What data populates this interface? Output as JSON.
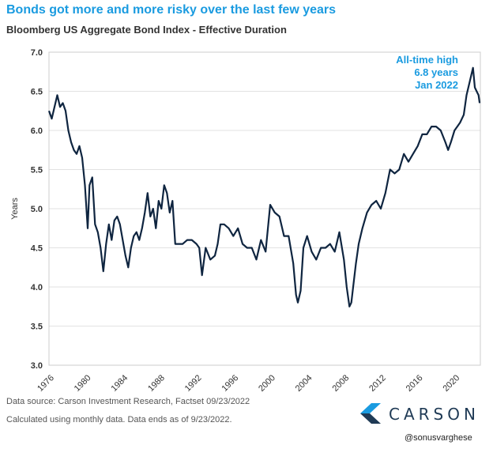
{
  "title": "Bonds got more and more risky over the last few years",
  "subtitle": "Bloomberg US Aggregate Bond Index - Effective Duration",
  "footer": {
    "source": "Data source: Carson Investment Research, Factset  09/23/2022",
    "note": "Calculated using monthly data. Data ends as of 9/23/2022.",
    "handle": "@sonusvarghese"
  },
  "logo": {
    "text": "CARSON",
    "icon": "carson-chevron-icon"
  },
  "colors": {
    "title": "#1a9be0",
    "line": "#0f2540",
    "annotation": "#1a9be0",
    "grid": "#e2e2e2"
  },
  "chart_data": {
    "type": "line",
    "ylabel": "Years",
    "ylim": [
      3.0,
      7.0
    ],
    "yticks": [
      "3.0",
      "3.5",
      "4.0",
      "4.5",
      "5.0",
      "5.5",
      "6.0",
      "6.5",
      "7.0"
    ],
    "xlim": [
      1976,
      2022.8
    ],
    "xticks": [
      "1976",
      "1980",
      "1984",
      "1988",
      "1992",
      "1996",
      "2000",
      "2004",
      "2008",
      "2012",
      "2016",
      "2020"
    ],
    "grid": "horizontal",
    "annotation": {
      "lines": [
        "All-time high",
        "6.8 years",
        "Jan 2022"
      ]
    },
    "series": [
      {
        "x": [
          1976.0,
          1976.3,
          1976.6,
          1976.9,
          1977.2,
          1977.5,
          1977.8,
          1978.1,
          1978.4,
          1978.7,
          1979.0,
          1979.3,
          1979.6,
          1979.9,
          1980.2,
          1980.4,
          1980.7,
          1981.0,
          1981.3,
          1981.6,
          1981.9,
          1982.2,
          1982.5,
          1982.8,
          1983.1,
          1983.4,
          1983.7,
          1984.0,
          1984.3,
          1984.6,
          1984.9,
          1985.2,
          1985.5,
          1985.8,
          1986.1,
          1986.4,
          1986.7,
          1987.0,
          1987.3,
          1987.6,
          1987.9,
          1988.2,
          1988.5,
          1988.8,
          1989.1,
          1989.4,
          1989.7,
          1990.0,
          1990.5,
          1991.0,
          1991.5,
          1992.0,
          1992.3,
          1992.6,
          1993.0,
          1993.5,
          1994.0,
          1994.3,
          1994.6,
          1995.0,
          1995.5,
          1996.0,
          1996.5,
          1997.0,
          1997.5,
          1998.0,
          1998.5,
          1999.0,
          1999.5,
          2000.0,
          2000.5,
          2001.0,
          2001.5,
          2002.0,
          2002.5,
          2002.8,
          2003.0,
          2003.3,
          2003.6,
          2004.0,
          2004.5,
          2005.0,
          2005.5,
          2006.0,
          2006.5,
          2007.0,
          2007.5,
          2008.0,
          2008.3,
          2008.6,
          2008.8,
          2009.0,
          2009.3,
          2009.6,
          2010.0,
          2010.5,
          2011.0,
          2011.5,
          2012.0,
          2012.5,
          2013.0,
          2013.5,
          2014.0,
          2014.5,
          2015.0,
          2015.5,
          2016.0,
          2016.5,
          2017.0,
          2017.5,
          2018.0,
          2018.5,
          2019.0,
          2019.3,
          2019.6,
          2020.0,
          2020.3,
          2020.6,
          2021.0,
          2021.3,
          2021.6,
          2021.9,
          2022.0,
          2022.2,
          2022.4,
          2022.6,
          2022.72
        ],
        "y": [
          6.25,
          6.15,
          6.3,
          6.45,
          6.3,
          6.35,
          6.25,
          6.0,
          5.85,
          5.75,
          5.7,
          5.8,
          5.65,
          5.3,
          4.75,
          5.3,
          5.4,
          4.8,
          4.7,
          4.5,
          4.2,
          4.55,
          4.8,
          4.6,
          4.85,
          4.9,
          4.8,
          4.6,
          4.4,
          4.25,
          4.5,
          4.65,
          4.7,
          4.6,
          4.75,
          4.95,
          5.2,
          4.9,
          5.0,
          4.75,
          5.1,
          5.0,
          5.3,
          5.2,
          4.95,
          5.1,
          4.55,
          4.55,
          4.55,
          4.6,
          4.6,
          4.55,
          4.5,
          4.15,
          4.5,
          4.35,
          4.4,
          4.55,
          4.8,
          4.8,
          4.75,
          4.65,
          4.75,
          4.55,
          4.5,
          4.5,
          4.35,
          4.6,
          4.45,
          5.05,
          4.95,
          4.9,
          4.65,
          4.65,
          4.3,
          3.9,
          3.8,
          3.95,
          4.5,
          4.65,
          4.45,
          4.35,
          4.5,
          4.5,
          4.55,
          4.45,
          4.7,
          4.35,
          4.0,
          3.75,
          3.8,
          4.0,
          4.3,
          4.55,
          4.75,
          4.95,
          5.05,
          5.1,
          5.0,
          5.2,
          5.5,
          5.45,
          5.5,
          5.7,
          5.6,
          5.7,
          5.8,
          5.95,
          5.95,
          6.05,
          6.05,
          6.0,
          5.85,
          5.75,
          5.85,
          6.0,
          6.05,
          6.1,
          6.2,
          6.45,
          6.6,
          6.75,
          6.8,
          6.55,
          6.5,
          6.45,
          6.35
        ]
      }
    ]
  }
}
